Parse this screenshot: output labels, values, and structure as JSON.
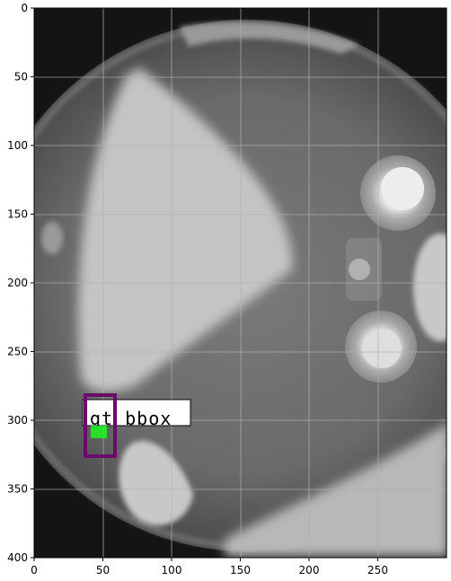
{
  "axes": {
    "x_ticks": [
      0,
      50,
      100,
      150,
      200,
      250
    ],
    "y_ticks": [
      0,
      50,
      100,
      150,
      200,
      250,
      300,
      350,
      400
    ],
    "x_range": [
      0,
      300
    ],
    "y_range": [
      400,
      0
    ],
    "grid": true
  },
  "image": {
    "content": "grayscale x-ray of a wheel rim with spokes and bolt holes"
  },
  "overlay": {
    "label_text": "gt bbox",
    "gt_bbox_color": "#6a0a6a",
    "pred_bbox_color": "#22ee22",
    "label_bg_color": "#ffffff"
  }
}
